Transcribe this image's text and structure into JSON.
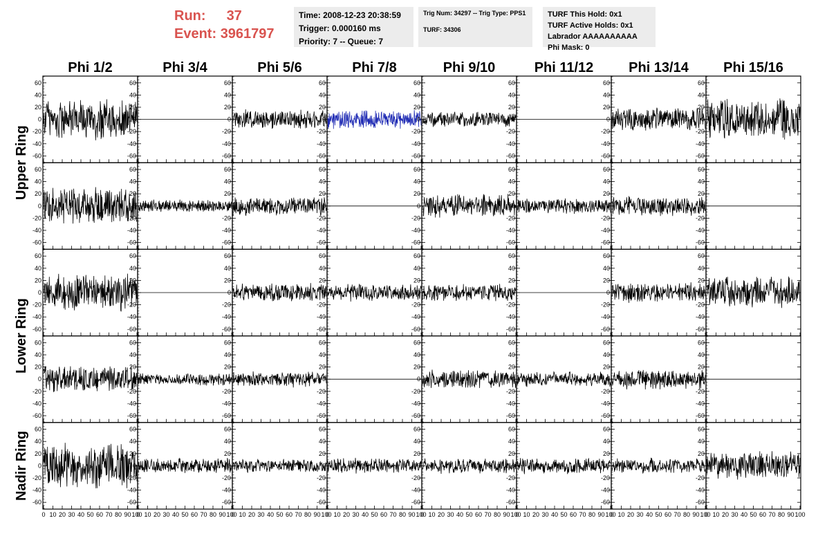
{
  "run": {
    "run_label": "Run:",
    "run_value": "37",
    "event_label": "Event:",
    "event_value": "3961797"
  },
  "info_time": {
    "time": "Time: 2008-12-23 20:38:59",
    "trigger": "Trigger: 0.000160 ms",
    "priority": "Priority: 7 -- Queue: 7"
  },
  "info_trig": {
    "trig": "Trig Num: 34297 -- Trig Type: PPS1",
    "turf": "TURF: 34306"
  },
  "info_turf": {
    "hold": "TURF This Hold: 0x1",
    "active": "TURF Active Holds: 0x1",
    "labrador": "Labrador AAAAAAAAAA",
    "phimask": "Phi Mask: 0"
  },
  "chart_data": {
    "type": "line",
    "columns": [
      "Phi 1/2",
      "Phi 3/4",
      "Phi 5/6",
      "Phi 7/8",
      "Phi 9/10",
      "Phi 11/12",
      "Phi 13/14",
      "Phi 15/16"
    ],
    "ring_labels": [
      {
        "text": "Upper Ring",
        "rows": [
          0,
          1
        ]
      },
      {
        "text": "Lower Ring",
        "rows": [
          2,
          3
        ]
      },
      {
        "text": "Nadir Ring",
        "rows": [
          4,
          4
        ]
      }
    ],
    "xlim": [
      0,
      100
    ],
    "ylim": [
      -70,
      70
    ],
    "x_ticks": [
      0,
      10,
      20,
      30,
      40,
      50,
      60,
      70,
      80,
      90,
      100
    ],
    "y_ticks": [
      -60,
      -40,
      -20,
      0,
      20,
      40,
      60
    ],
    "highlight_color": "#1f2bb4",
    "trace_color": "#000000",
    "amplitudes": [
      [
        33,
        0,
        15,
        15,
        12,
        0,
        18,
        33
      ],
      [
        30,
        10,
        15,
        0,
        18,
        12,
        15,
        0
      ],
      [
        30,
        0,
        15,
        13,
        13,
        0,
        15,
        25
      ],
      [
        20,
        10,
        12,
        0,
        15,
        12,
        15,
        0
      ],
      [
        35,
        12,
        10,
        12,
        12,
        12,
        12,
        22
      ]
    ],
    "highlight_panel": [
      0,
      3
    ]
  }
}
